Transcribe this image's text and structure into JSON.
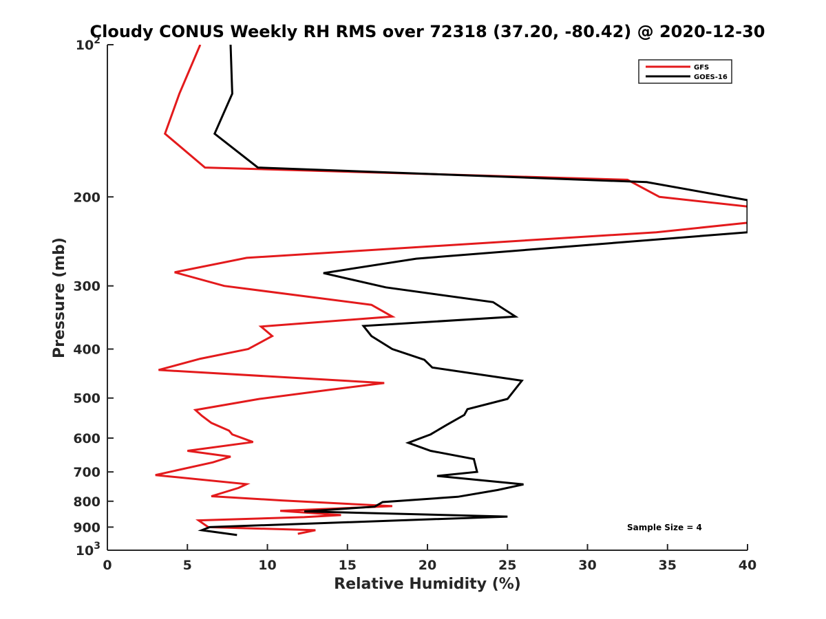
{
  "chart_data": {
    "type": "line",
    "title": "Cloudy CONUS Weekly RH RMS over 72318 (37.20, -80.42) @ 2020-12-30",
    "xlabel": "Relative Humidity (%)",
    "ylabel": "Pressure (mb)",
    "xlim": [
      0,
      40
    ],
    "ylim": [
      100,
      1000
    ],
    "yscale": "log",
    "yreversed": true,
    "x_ticks": [
      "0",
      "5",
      "10",
      "15",
      "20",
      "25",
      "30",
      "35",
      "40"
    ],
    "y_ticks": [
      {
        "value": 100,
        "label": "10",
        "sup": "2"
      },
      {
        "value": 200,
        "label": "200",
        "sup": ""
      },
      {
        "value": 300,
        "label": "300",
        "sup": ""
      },
      {
        "value": 400,
        "label": "400",
        "sup": ""
      },
      {
        "value": 500,
        "label": "500",
        "sup": ""
      },
      {
        "value": 600,
        "label": "600",
        "sup": ""
      },
      {
        "value": 700,
        "label": "700",
        "sup": ""
      },
      {
        "value": 800,
        "label": "800",
        "sup": ""
      },
      {
        "value": 900,
        "label": "900",
        "sup": ""
      },
      {
        "value": 1000,
        "label": "10",
        "sup": "3"
      }
    ],
    "legend_position": "top-right",
    "annotation": "Sample Size = 4",
    "series": [
      {
        "name": "GFS",
        "color": "#e31a1c",
        "points": [
          [
            5.8,
            100
          ],
          [
            4.5,
            125
          ],
          [
            3.6,
            150
          ],
          [
            6.1,
            175
          ],
          [
            32.5,
            185
          ],
          [
            34.5,
            200
          ],
          [
            40,
            209
          ],
          [
            40,
            225
          ],
          [
            34.3,
            235
          ],
          [
            8.7,
            264
          ],
          [
            4.2,
            282
          ],
          [
            7.3,
            300
          ],
          [
            16.5,
            327
          ],
          [
            17.8,
            345
          ],
          [
            9.6,
            361
          ],
          [
            10.3,
            377
          ],
          [
            8.8,
            400
          ],
          [
            5.8,
            418
          ],
          [
            3.2,
            440
          ],
          [
            17.3,
            467
          ],
          [
            13.8,
            482
          ],
          [
            9.5,
            502
          ],
          [
            5.5,
            528
          ],
          [
            5.9,
            542
          ],
          [
            6.5,
            560
          ],
          [
            7.6,
            580
          ],
          [
            7.8,
            590
          ],
          [
            9.1,
            611
          ],
          [
            5.0,
            636
          ],
          [
            7.7,
            653
          ],
          [
            6.6,
            670
          ],
          [
            3.0,
            710
          ],
          [
            8.7,
            740
          ],
          [
            8.2,
            753
          ],
          [
            6.5,
            782
          ],
          [
            10.9,
            797
          ],
          [
            17.8,
            818
          ],
          [
            10.8,
            836
          ],
          [
            14.6,
            852
          ],
          [
            12.3,
            860
          ],
          [
            5.7,
            873
          ],
          [
            6.3,
            900
          ],
          [
            13.0,
            913
          ],
          [
            11.9,
            928
          ]
        ]
      },
      {
        "name": "GOES-16",
        "color": "#000000",
        "points": [
          [
            7.7,
            100
          ],
          [
            7.8,
            125
          ],
          [
            6.7,
            150
          ],
          [
            9.4,
            175
          ],
          [
            33.7,
            187
          ],
          [
            40,
            203
          ],
          [
            40,
            235
          ],
          [
            19.3,
            265
          ],
          [
            13.5,
            283
          ],
          [
            17.4,
            302
          ],
          [
            24.1,
            323
          ],
          [
            25.5,
            345
          ],
          [
            16.0,
            360
          ],
          [
            16.5,
            377
          ],
          [
            17.8,
            400
          ],
          [
            19.8,
            420
          ],
          [
            20.3,
            435
          ],
          [
            25.9,
            462
          ],
          [
            25.0,
            502
          ],
          [
            22.5,
            526
          ],
          [
            22.3,
            540
          ],
          [
            21.2,
            565
          ],
          [
            20.2,
            590
          ],
          [
            18.8,
            613
          ],
          [
            20.2,
            636
          ],
          [
            22.9,
            660
          ],
          [
            23.1,
            700
          ],
          [
            20.6,
            713
          ],
          [
            26.0,
            741
          ],
          [
            24.4,
            760
          ],
          [
            21.9,
            784
          ],
          [
            17.2,
            803
          ],
          [
            16.7,
            820
          ],
          [
            12.3,
            838
          ],
          [
            25.0,
            858
          ],
          [
            6.4,
            900
          ],
          [
            5.9,
            913
          ],
          [
            8.1,
            933
          ]
        ]
      }
    ]
  }
}
